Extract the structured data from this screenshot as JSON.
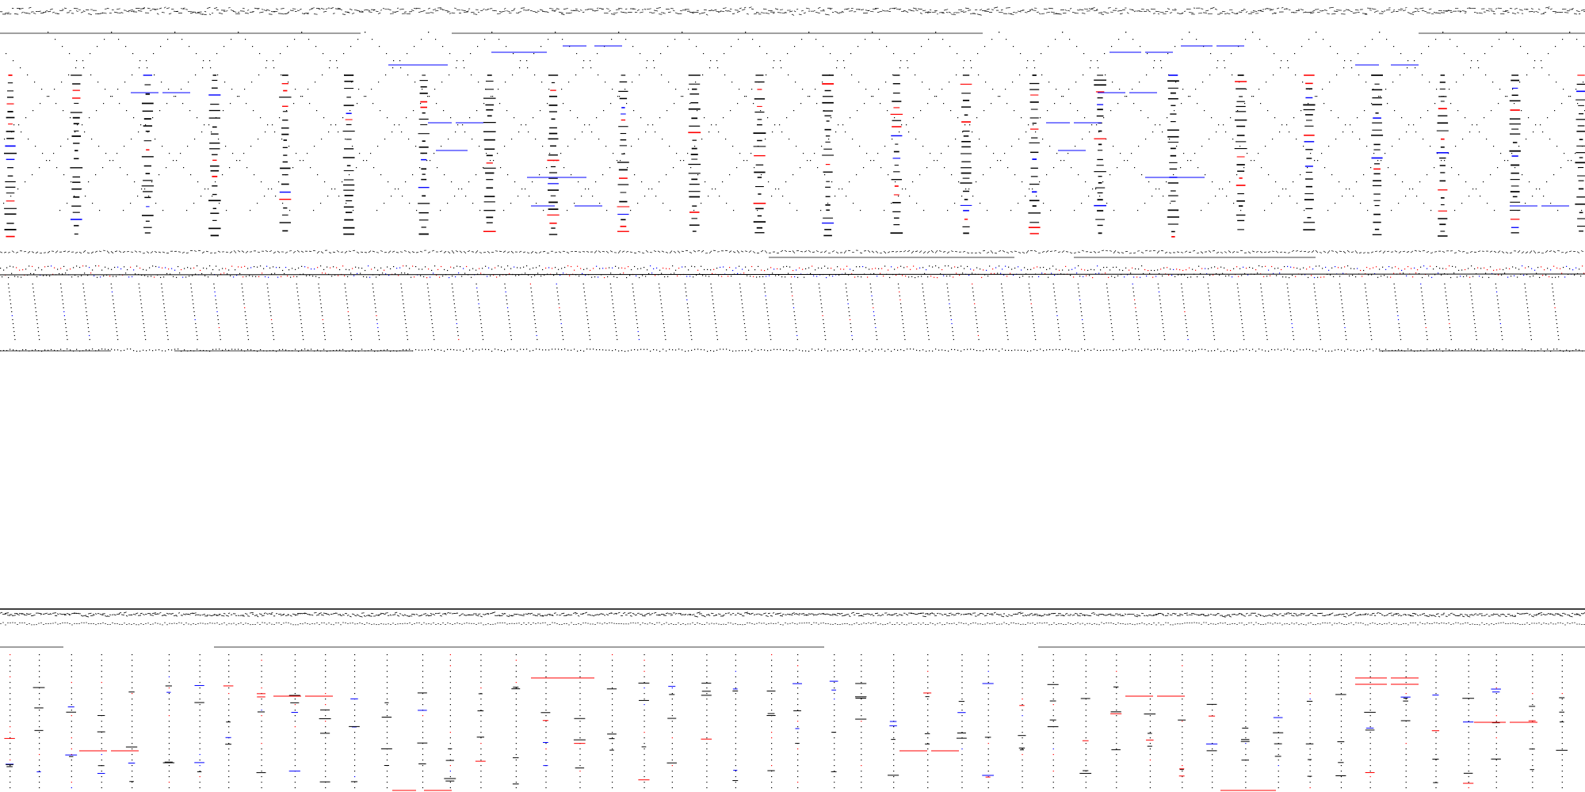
{
  "palette": {
    "background": "#ffffff",
    "ink": "#000000",
    "red": "#ff0000",
    "blue": "#0000ff"
  },
  "panels": {
    "top": {
      "label": ""
    },
    "middle": {
      "label": ""
    },
    "bottom": {
      "label": ""
    }
  }
}
